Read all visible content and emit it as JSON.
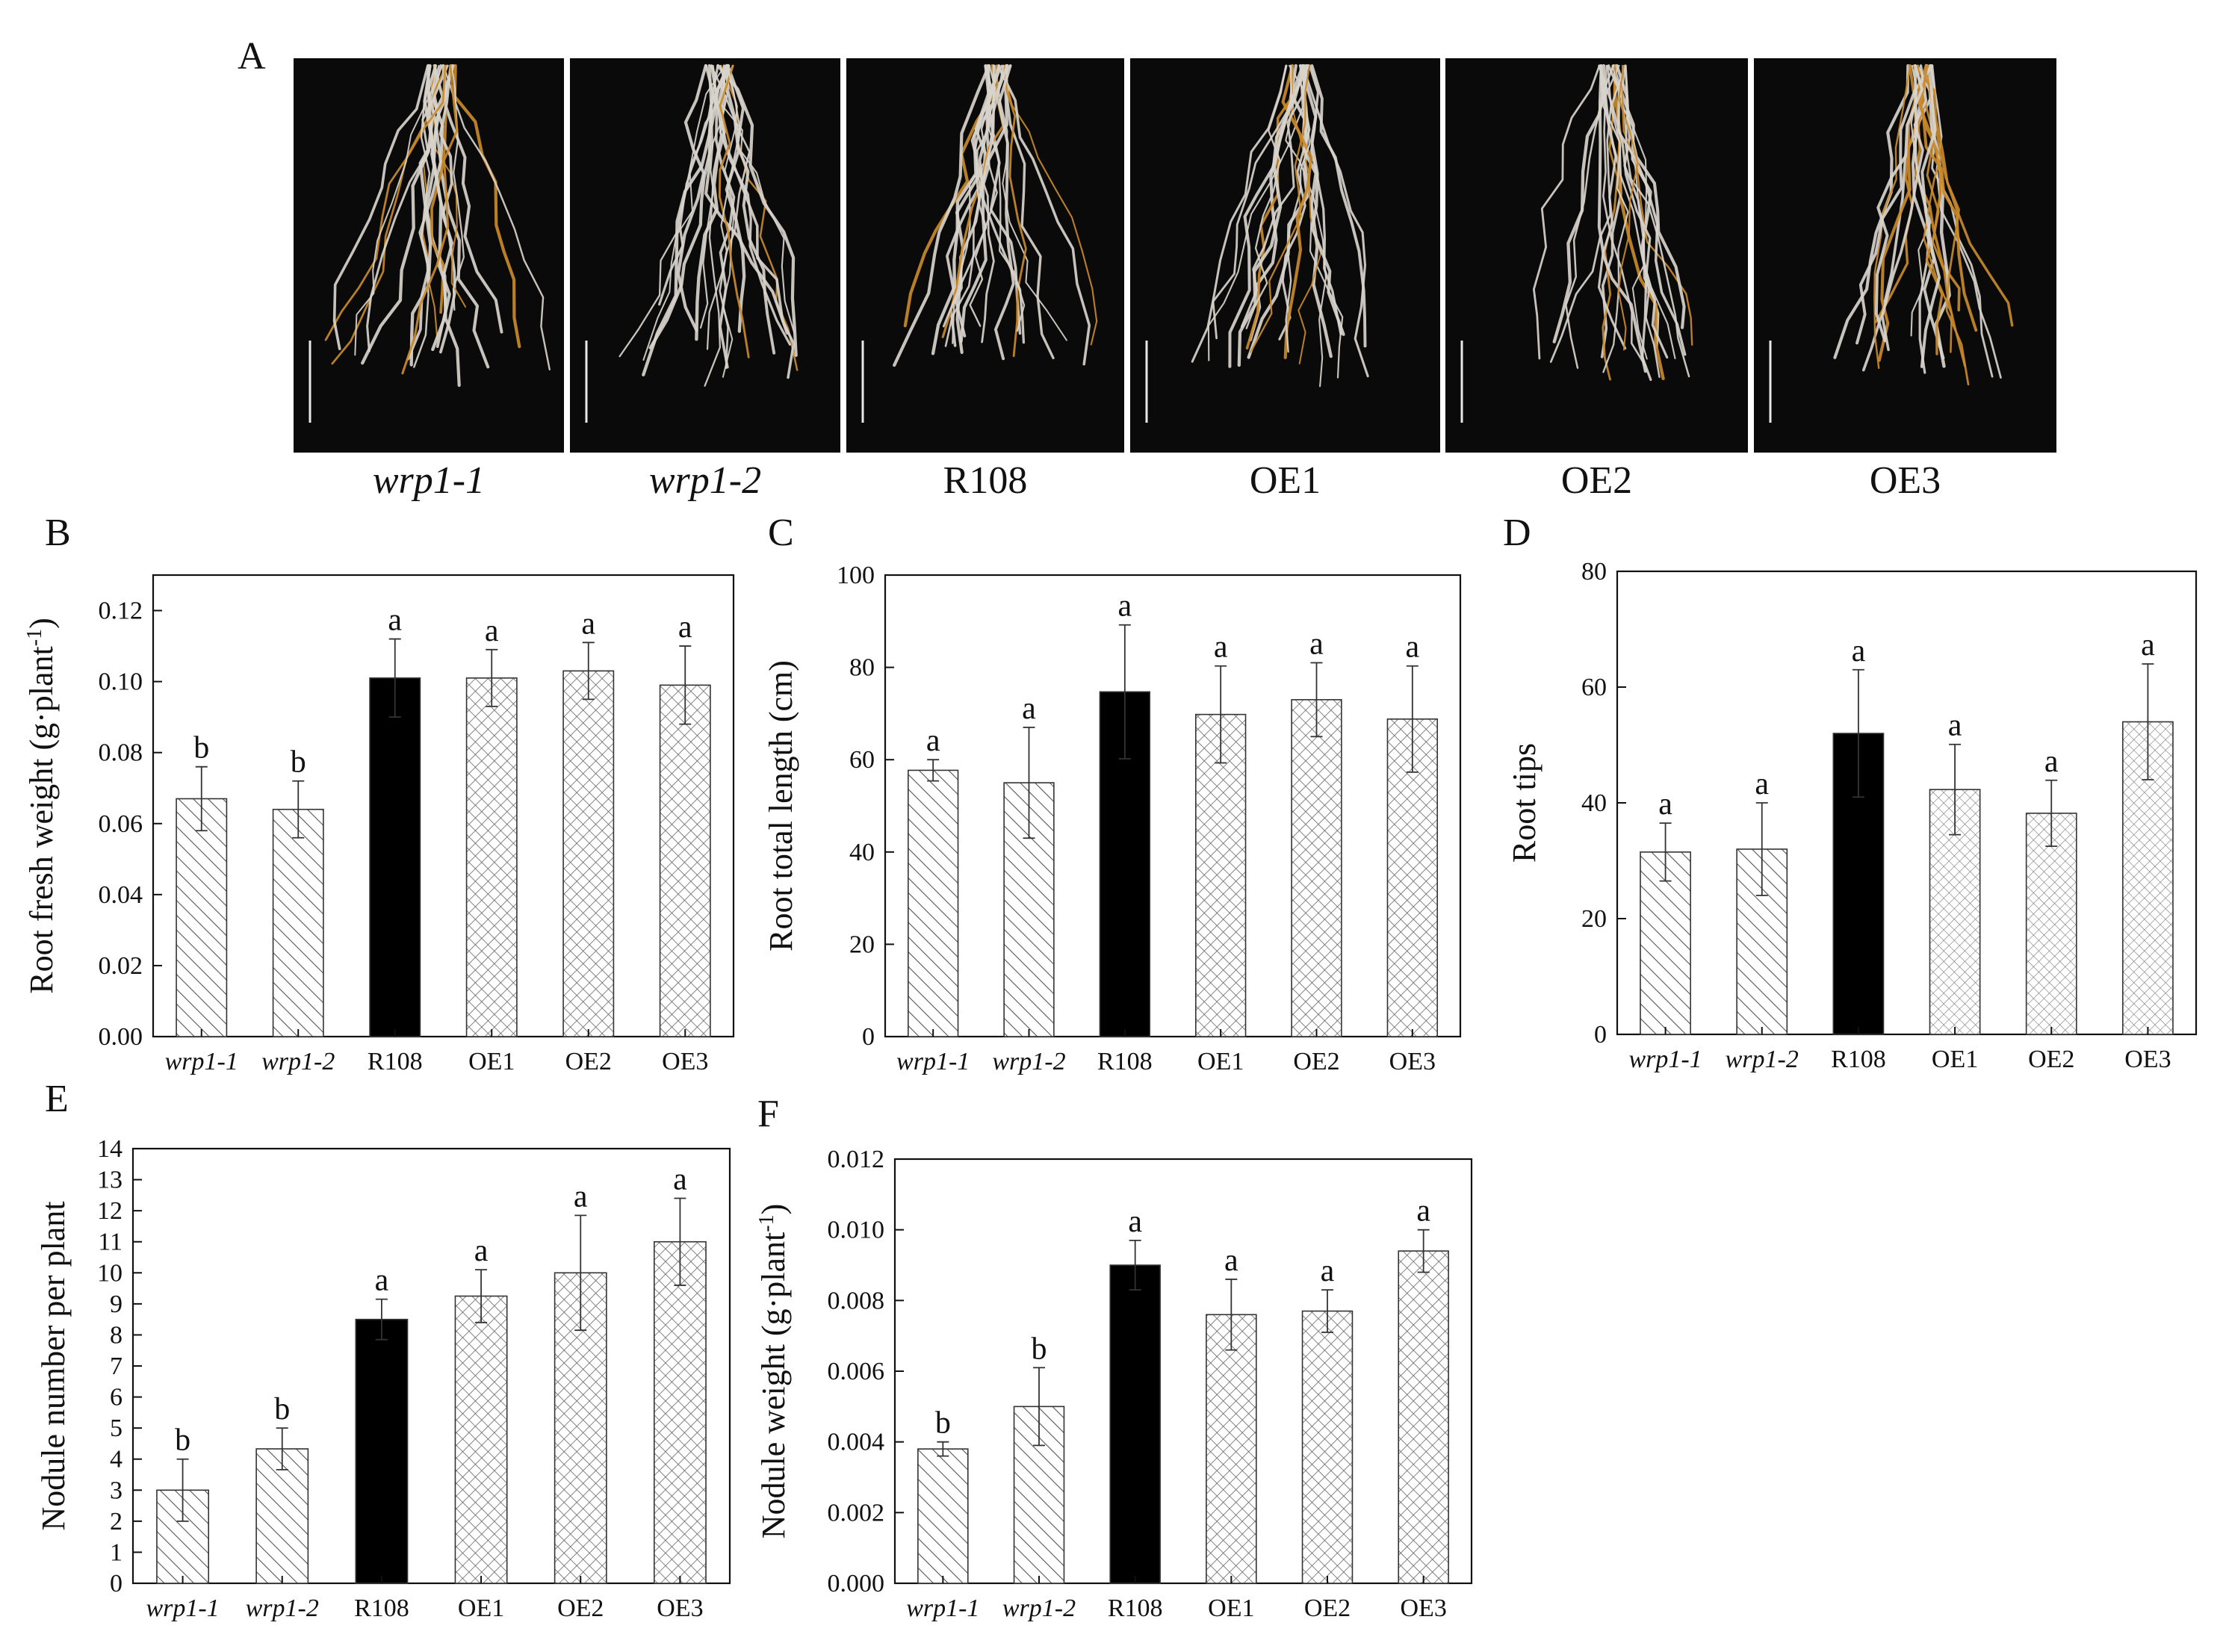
{
  "panel_letters": [
    "A",
    "B",
    "C",
    "D",
    "E",
    "F"
  ],
  "photo_panels": [
    {
      "label": "wrp1-1",
      "italic": true
    },
    {
      "label": "wrp1-2",
      "italic": true
    },
    {
      "label": "R108",
      "italic": false
    },
    {
      "label": "OE1",
      "italic": false
    },
    {
      "label": "OE2",
      "italic": false
    },
    {
      "label": "OE3",
      "italic": false
    }
  ],
  "colors": {
    "background": "#ffffff",
    "photo_background": "#0a0a0a",
    "root_white": "#d8d4cc",
    "root_orange": "#c98a2a",
    "r108_bar": "#000000",
    "axis": "#111111"
  },
  "chart_data": [
    {
      "panel": "B",
      "type": "bar",
      "ylabel": "Root fresh weight (g·plant",
      "ylabel_superscript": "-1",
      "ylabel_suffix": ")",
      "categories": [
        "wrp1-1",
        "wrp1-2",
        "R108",
        "OE1",
        "OE2",
        "OE3"
      ],
      "category_italic": [
        true,
        true,
        false,
        false,
        false,
        false
      ],
      "values": [
        0.067,
        0.064,
        0.101,
        0.101,
        0.103,
        0.099
      ],
      "errors": [
        0.009,
        0.008,
        0.011,
        0.008,
        0.008,
        0.011
      ],
      "letters": [
        "b",
        "b",
        "a",
        "a",
        "a",
        "a"
      ],
      "patterns": [
        "diag",
        "diag",
        "solid",
        "cross",
        "cross",
        "cross"
      ],
      "ylim": [
        0,
        0.13
      ],
      "yticks": [
        "0.00",
        "0.02",
        "0.04",
        "0.06",
        "0.08",
        "0.10",
        "0.12"
      ]
    },
    {
      "panel": "C",
      "type": "bar",
      "ylabel": "Root total length (cm)",
      "categories": [
        "wrp1-1",
        "wrp1-2",
        "R108",
        "OE1",
        "OE2",
        "OE3"
      ],
      "category_italic": [
        true,
        true,
        false,
        false,
        false,
        false
      ],
      "values": [
        57.7,
        55.0,
        74.7,
        69.8,
        73.0,
        68.8
      ],
      "errors": [
        2.3,
        12.0,
        14.5,
        10.5,
        8.0,
        11.5
      ],
      "letters": [
        "a",
        "a",
        "a",
        "a",
        "a",
        "a"
      ],
      "patterns": [
        "diag",
        "diag",
        "solid",
        "cross",
        "cross",
        "cross"
      ],
      "ylim": [
        0,
        100
      ],
      "yticks": [
        "0",
        "20",
        "40",
        "60",
        "80",
        "100"
      ]
    },
    {
      "panel": "D",
      "type": "bar",
      "ylabel": "Root tips",
      "categories": [
        "wrp1-1",
        "wrp1-2",
        "R108",
        "OE1",
        "OE2",
        "OE3"
      ],
      "category_italic": [
        true,
        true,
        false,
        false,
        false,
        false
      ],
      "values": [
        31.5,
        32.0,
        52.0,
        42.3,
        38.2,
        54.0
      ],
      "errors": [
        5.0,
        8.0,
        11.0,
        7.8,
        5.7,
        10.0
      ],
      "letters": [
        "a",
        "a",
        "a",
        "a",
        "a",
        "a"
      ],
      "patterns": [
        "diag",
        "diag",
        "solid",
        "dots",
        "dots",
        "dots"
      ],
      "ylim": [
        0,
        80
      ],
      "yticks": [
        "0",
        "20",
        "40",
        "60",
        "80"
      ]
    },
    {
      "panel": "E",
      "type": "bar",
      "ylabel": "Nodule number per plant",
      "categories": [
        "wrp1-1",
        "wrp1-2",
        "R108",
        "OE1",
        "OE2",
        "OE3"
      ],
      "category_italic": [
        true,
        true,
        false,
        false,
        false,
        false
      ],
      "values": [
        3.0,
        4.33,
        8.5,
        9.25,
        10.0,
        11.0
      ],
      "errors": [
        1.0,
        0.67,
        0.65,
        0.85,
        1.85,
        1.4
      ],
      "letters": [
        "b",
        "b",
        "a",
        "a",
        "a",
        "a"
      ],
      "patterns": [
        "diag",
        "diag",
        "solid",
        "cross",
        "cross",
        "cross"
      ],
      "ylim": [
        0,
        14
      ],
      "yticks": [
        "0",
        "1",
        "2",
        "3",
        "4",
        "5",
        "6",
        "7",
        "8",
        "9",
        "10",
        "11",
        "12",
        "13",
        "14"
      ]
    },
    {
      "panel": "F",
      "type": "bar",
      "ylabel": "Nodule  weight (g·plant",
      "ylabel_superscript": "-1",
      "ylabel_suffix": ")",
      "categories": [
        "wrp1-1",
        "wrp1-2",
        "R108",
        "OE1",
        "OE2",
        "OE3"
      ],
      "category_italic": [
        true,
        true,
        false,
        false,
        false,
        false
      ],
      "values": [
        0.0038,
        0.005,
        0.009,
        0.0076,
        0.0077,
        0.0094
      ],
      "errors": [
        0.0002,
        0.0011,
        0.0007,
        0.001,
        0.0006,
        0.0006
      ],
      "letters": [
        "b",
        "b",
        "a",
        "a",
        "a",
        "a"
      ],
      "patterns": [
        "diag",
        "diag",
        "solid",
        "cross",
        "cross",
        "cross"
      ],
      "ylim": [
        0,
        0.012
      ],
      "yticks": [
        "0.000",
        "0.002",
        "0.004",
        "0.006",
        "0.008",
        "0.010",
        "0.012"
      ]
    }
  ]
}
